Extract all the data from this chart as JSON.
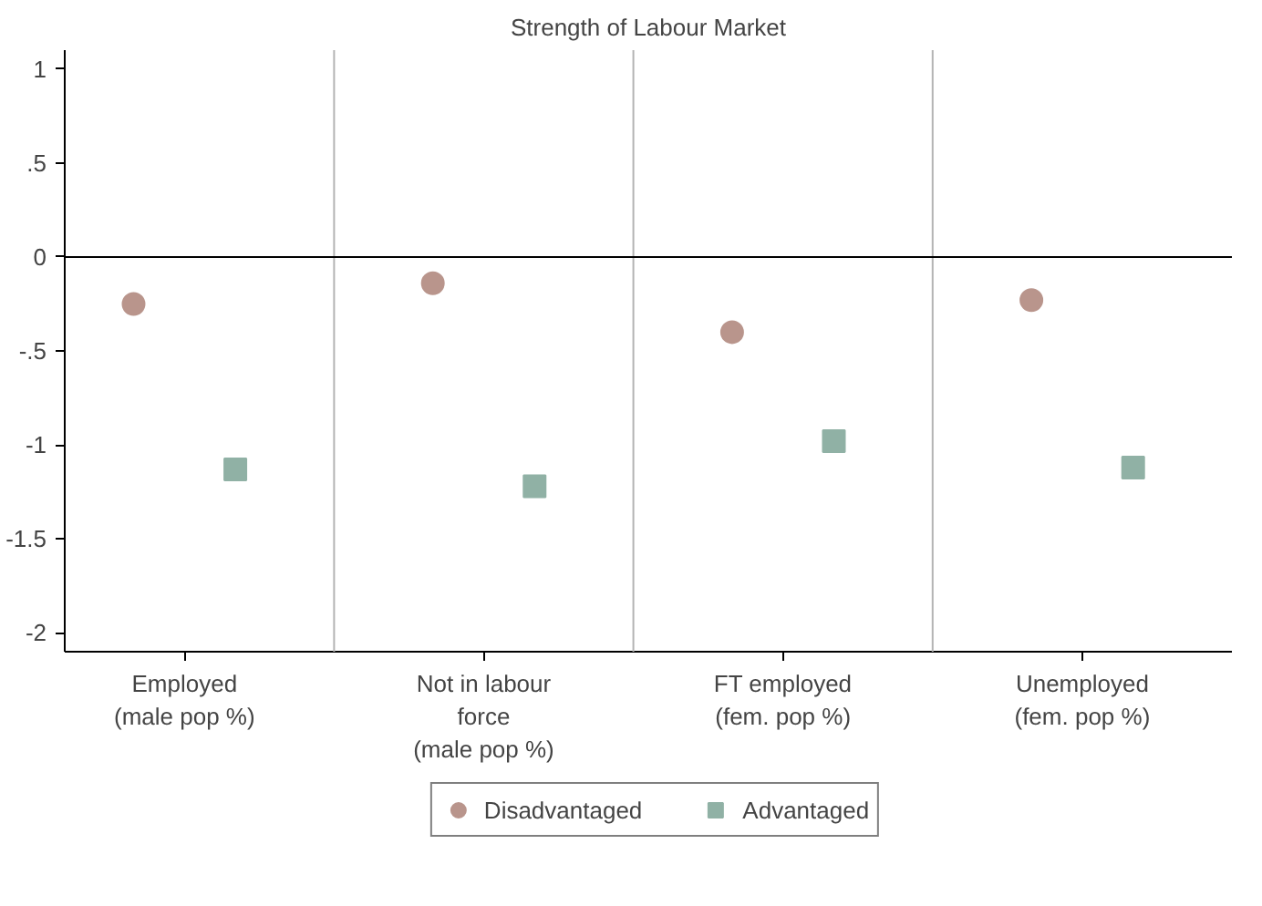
{
  "chart_data": {
    "type": "scatter",
    "title": "Strength of Labour Market",
    "categories": [
      "Employed\n(male pop %)",
      "Not in labour\nforce\n(male pop %)",
      "FT employed\n(fem. pop %)",
      "Unemployed\n(fem. pop %)"
    ],
    "series": [
      {
        "name": "Disadvantaged",
        "color": "#b9958c",
        "marker": "circle",
        "values": [
          -0.25,
          -0.14,
          -0.4,
          -0.23
        ]
      },
      {
        "name": "Advantaged",
        "color": "#90b1a5",
        "marker": "square",
        "values": [
          -1.13,
          -1.22,
          -0.98,
          -1.12
        ]
      }
    ],
    "ylim": [
      -2.1,
      1.1
    ],
    "yticks": [
      {
        "value": -2,
        "label": "-2"
      },
      {
        "value": -1.5,
        "label": "-1.5"
      },
      {
        "value": -1,
        "label": "-1"
      },
      {
        "value": -0.5,
        "label": "-.5"
      },
      {
        "value": 0,
        "label": "0"
      },
      {
        "value": 0.5,
        "label": ".5"
      },
      {
        "value": 1,
        "label": "1"
      }
    ],
    "ref_lines": [
      {
        "axis": "y",
        "value": 0,
        "color": "#000000"
      }
    ],
    "grid": false,
    "legend": "bottom"
  }
}
